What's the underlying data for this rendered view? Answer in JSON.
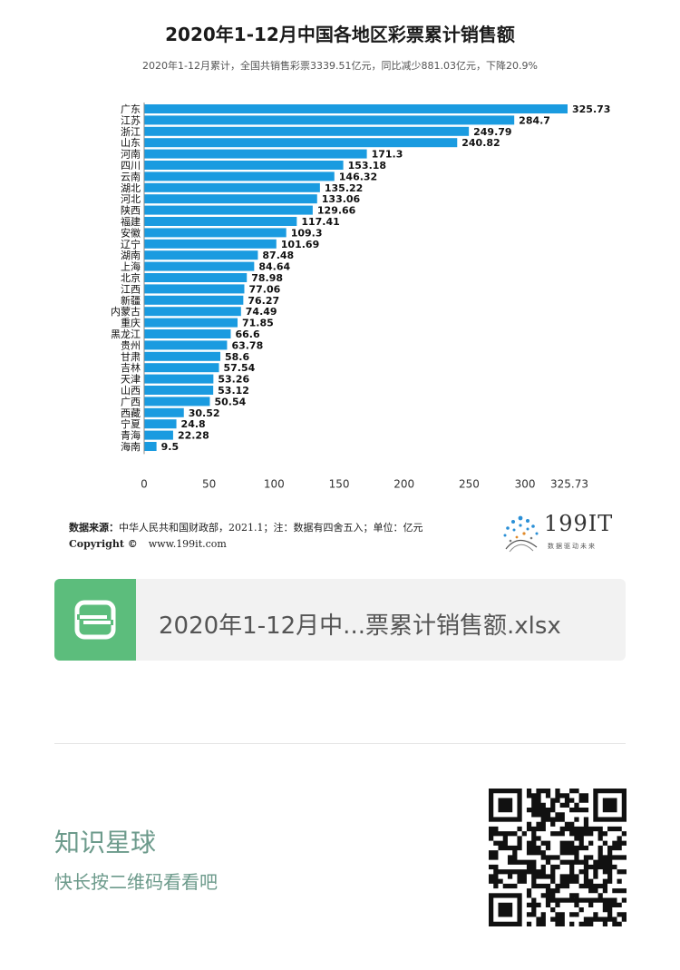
{
  "chart_data": {
    "type": "bar",
    "orientation": "horizontal",
    "title": "2020年1-12月中国各地区彩票累计销售额",
    "subtitle": "2020年1-12月累计，全国共销售彩票3339.51亿元，同比减少881.03亿元，下降20.9%",
    "categories": [
      "广东",
      "江苏",
      "浙江",
      "山东",
      "河南",
      "四川",
      "云南",
      "湖北",
      "河北",
      "陕西",
      "福建",
      "安徽",
      "辽宁",
      "湖南",
      "上海",
      "北京",
      "江西",
      "新疆",
      "内蒙古",
      "重庆",
      "黑龙江",
      "贵州",
      "甘肃",
      "吉林",
      "天津",
      "山西",
      "广西",
      "西藏",
      "宁夏",
      "青海",
      "海南"
    ],
    "values": [
      325.73,
      284.7,
      249.79,
      240.82,
      171.3,
      153.18,
      146.32,
      135.22,
      133.06,
      129.66,
      117.41,
      109.3,
      101.69,
      87.48,
      84.64,
      78.98,
      77.06,
      76.27,
      74.49,
      71.85,
      66.6,
      63.78,
      58.6,
      57.54,
      53.26,
      53.12,
      50.54,
      30.52,
      24.8,
      22.28,
      9.5
    ],
    "value_labels": [
      "325.73",
      "284.7",
      "249.79",
      "240.82",
      "171.3",
      "153.18",
      "146.32",
      "135.22",
      "133.06",
      "129.66",
      "117.41",
      "109.3",
      "101.69",
      "87.48",
      "84.64",
      "78.98",
      "77.06",
      "76.27",
      "74.49",
      "71.85",
      "66.6",
      "63.78",
      "58.6",
      "57.54",
      "53.26",
      "53.12",
      "50.54",
      "30.52",
      "24.8",
      "22.28",
      "9.5"
    ],
    "x_ticks": [
      "0",
      "50",
      "100",
      "150",
      "200",
      "250",
      "300",
      "325.73"
    ],
    "x_tick_values": [
      0,
      50,
      100,
      150,
      200,
      250,
      300,
      325.73
    ],
    "xlim": [
      0,
      325.73
    ],
    "bar_color": "#1a9be0",
    "grid": false,
    "legend": "none"
  },
  "source": {
    "label": "数据来源：",
    "text": "中华人民共和国财政部，2021.1；注：数据有四舍五入；单位：亿元"
  },
  "copyright": {
    "label": "Copyright ©",
    "url": "www.199it.com"
  },
  "logo": {
    "text": "199IT",
    "tagline": "数据驱动未来"
  },
  "file_card": {
    "icon_letter": "S",
    "icon_color": "#5cbd7c",
    "file_name": "2020年1-12月中...票累计销售额.xlsx"
  },
  "brand": {
    "title": "知识星球",
    "subtitle": "快长按二维码看看吧",
    "color": "#6c9a8b"
  }
}
